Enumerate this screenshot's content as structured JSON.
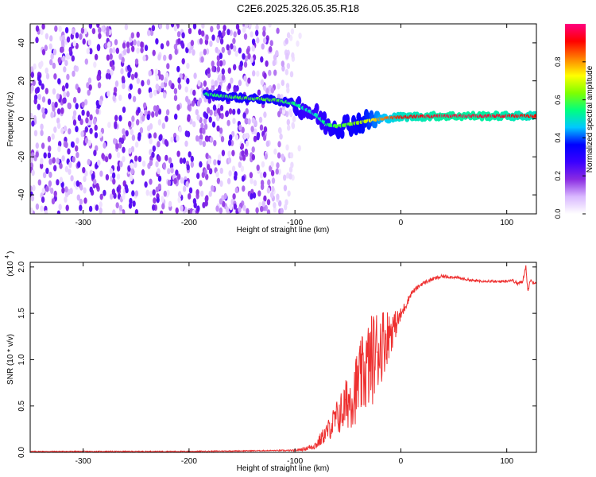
{
  "title": "C2E6.2025.326.05.35.R18",
  "chart_data": [
    {
      "type": "heatmap",
      "title": "C2E6.2025.326.05.35.R18",
      "xlabel": "Height of straight line (km)",
      "ylabel": "Frequency (Hz)",
      "xlim": [
        -350,
        128
      ],
      "ylim": [
        -50,
        50
      ],
      "xticks": [
        -300,
        -200,
        -100,
        0,
        100
      ],
      "xtick_labels": [
        "-300",
        "-200",
        "-100",
        "0",
        "100"
      ],
      "yticks": [
        -40,
        -20,
        0,
        20,
        40
      ],
      "ytick_labels": [
        "-40",
        "-20",
        "0",
        "20",
        "40"
      ],
      "colorbar": {
        "label": "Normalized spectral amplitude",
        "range": [
          0,
          1
        ],
        "ticks": [
          0.0,
          0.2,
          0.4,
          0.6,
          0.8
        ],
        "tick_labels": [
          "0.0",
          "0.2",
          "0.4",
          "0.6",
          "0.8"
        ],
        "colors": [
          "#ffffff",
          "#d9b8ff",
          "#8a2be2",
          "#3a00ff",
          "#0000ff",
          "#00c8ff",
          "#00ff80",
          "#7fff00",
          "#ffff00",
          "#ff8000",
          "#ff0000",
          "#ff0080"
        ]
      },
      "noise_region": {
        "x": [
          -350,
          -95
        ],
        "y": [
          -50,
          50
        ],
        "level": [
          0.0,
          0.25
        ]
      },
      "ridge": {
        "x": [
          -185,
          -150,
          -120,
          -100,
          -90,
          -80,
          -70,
          -60,
          -50,
          -40,
          -30,
          -20,
          0,
          40,
          80,
          128
        ],
        "y": [
          13,
          11,
          10,
          8,
          5,
          2,
          -3,
          -4,
          -3,
          -2,
          -1,
          0,
          1,
          1.5,
          1.5,
          1.5
        ],
        "level": [
          0.55,
          0.6,
          0.6,
          0.55,
          0.5,
          0.5,
          0.55,
          0.6,
          0.6,
          0.65,
          0.7,
          0.8,
          0.9,
          0.95,
          0.95,
          0.9
        ]
      }
    },
    {
      "type": "line",
      "xlabel": "Height of straight line (km)",
      "ylabel": "SNR (10 * v/v)",
      "multiplier": "(x10",
      "multiplier_exp": "4",
      "xlim": [
        -350,
        128
      ],
      "ylim": [
        0,
        2.05
      ],
      "xticks": [
        -300,
        -200,
        -100,
        0,
        100
      ],
      "xtick_labels": [
        "-300",
        "-200",
        "-100",
        "0",
        "100"
      ],
      "yticks": [
        0.0,
        0.5,
        1.0,
        1.5,
        2.0
      ],
      "ytick_labels": [
        "0.0",
        "0.5",
        "1.0",
        "1.5",
        "2.0"
      ],
      "line_color": "#ee3030",
      "series": [
        {
          "x": [
            -350,
            -300,
            -200,
            -120,
            -100,
            -90,
            -80,
            -75,
            -70,
            -65,
            -60,
            -55,
            -50,
            -45,
            -40,
            -35,
            -30,
            -25,
            -20,
            -15,
            -10,
            -5,
            0,
            5,
            10,
            20,
            30,
            40,
            50,
            60,
            70,
            80,
            90,
            100,
            105,
            110,
            115,
            118,
            120,
            122,
            125,
            128
          ],
          "y": [
            0.01,
            0.01,
            0.01,
            0.02,
            0.02,
            0.04,
            0.08,
            0.15,
            0.22,
            0.3,
            0.38,
            0.45,
            0.55,
            0.62,
            0.75,
            0.85,
            0.95,
            1.05,
            1.15,
            1.22,
            1.3,
            1.38,
            1.48,
            1.6,
            1.72,
            1.82,
            1.87,
            1.9,
            1.89,
            1.87,
            1.85,
            1.85,
            1.84,
            1.85,
            1.86,
            1.82,
            1.84,
            2.02,
            1.72,
            1.86,
            1.83,
            1.84
          ],
          "noise_amplitude": [
            0.005,
            0.005,
            0.005,
            0.005,
            0.01,
            0.02,
            0.05,
            0.08,
            0.1,
            0.15,
            0.2,
            0.25,
            0.3,
            0.35,
            0.4,
            0.45,
            0.5,
            0.5,
            0.45,
            0.35,
            0.25,
            0.15,
            0.08,
            0.05,
            0.03,
            0.02,
            0.02,
            0.02,
            0.015,
            0.015,
            0.015,
            0.015,
            0.015,
            0.015,
            0.015,
            0.02,
            0.02,
            0.02,
            0.02,
            0.02,
            0.015,
            0.015
          ]
        }
      ]
    }
  ]
}
